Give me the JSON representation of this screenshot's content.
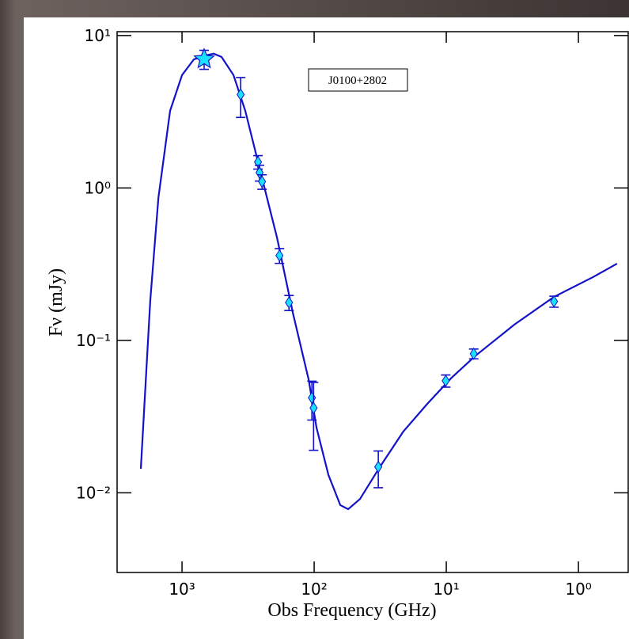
{
  "chart_data": {
    "type": "scatter",
    "xlabel": "Obs Frequency (GHz)",
    "ylabel": "Fν (mJy)",
    "annotation": "J0100+2802",
    "xscale": "log",
    "yscale": "log",
    "xlim": [
      3100,
      0.42
    ],
    "ylim": [
      0.003,
      10.6
    ],
    "xticks": [
      {
        "value": 1000,
        "label": "10³"
      },
      {
        "value": 100,
        "label": "10²"
      },
      {
        "value": 10,
        "label": "10¹"
      },
      {
        "value": 1,
        "label": "10⁰"
      }
    ],
    "yticks": [
      {
        "value": 0.01,
        "label": "10⁻²"
      },
      {
        "value": 0.1,
        "label": "10⁻¹"
      },
      {
        "value": 1,
        "label": "10⁰"
      },
      {
        "value": 10,
        "label": "10¹"
      }
    ],
    "series": [
      {
        "marker": "line",
        "color": "#1212c8",
        "x": [
          2050,
          1740,
          1510,
          1230,
          1000,
          813,
          661,
          575,
          502,
          408,
          332,
          252,
          191,
          145,
          110,
          96,
          78,
          63.4,
          55.3,
          45,
          31.8,
          21.1,
          13.9,
          9.2,
          6.08,
          3.05,
          1.53,
          0.77,
          0.51
        ],
        "values": [
          0.0144,
          0.182,
          0.861,
          3.21,
          5.5,
          6.98,
          7.41,
          7.6,
          7.24,
          5.5,
          3.21,
          1.23,
          0.473,
          0.152,
          0.055,
          0.0268,
          0.0131,
          0.0083,
          0.0078,
          0.0091,
          0.0148,
          0.0253,
          0.0384,
          0.0564,
          0.0787,
          0.127,
          0.193,
          0.261,
          0.319
        ]
      },
      {
        "marker": "star",
        "color": "#19e0ff",
        "x": [
          680
        ],
        "values": [
          7.0
        ],
        "errors": [
          1.0
        ]
      },
      {
        "marker": "diamond",
        "color": "#19e0ff",
        "x": [
          360,
          266,
          259,
          248,
          183,
          155,
          104,
          101,
          32.7,
          10.1,
          6.2,
          1.53
        ],
        "values": [
          4.1,
          1.48,
          1.26,
          1.1,
          0.36,
          0.177,
          0.042,
          0.036,
          0.0148,
          0.0543,
          0.0817,
          0.18
        ],
        "errors": [
          1.2,
          0.15,
          0.15,
          0.12,
          0.04,
          0.02,
          0.012,
          0.017,
          0.004,
          0.005,
          0.006,
          0.015
        ]
      }
    ]
  }
}
